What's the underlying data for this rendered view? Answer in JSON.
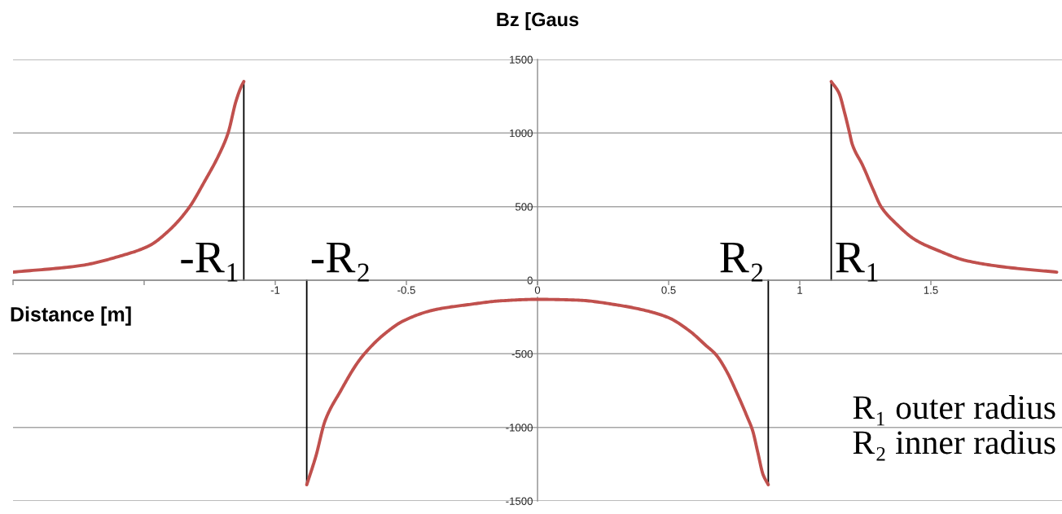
{
  "chart_data": {
    "type": "line",
    "xlabel": "Distance [m]",
    "ylabel": "Bz [Gaus",
    "xlim": [
      -2,
      2
    ],
    "ylim": [
      -1500,
      1500
    ],
    "xticks": [
      {
        "value": -2,
        "label": null
      },
      {
        "value": -1.5,
        "label": null
      },
      -1,
      -0.5,
      0,
      0.5,
      1,
      1.5
    ],
    "yticks": [
      -1500,
      -1000,
      -500,
      0,
      500,
      1000,
      1500
    ],
    "grid": "y",
    "series": [
      {
        "color": "#c0504d",
        "x": [
          -2,
          -1.74,
          -1.59,
          -1.48,
          -1.41,
          -1.33,
          -1.27,
          -1.21,
          -1.18,
          -1.15,
          -1.13,
          -1.12
        ],
        "values": [
          55,
          100,
          165,
          235,
          330,
          490,
          670,
          870,
          1000,
          1215,
          1315,
          1350
        ]
      },
      {
        "color": "#c0504d",
        "x": [
          -0.88,
          -0.845,
          -0.81,
          -0.75,
          -0.69,
          -0.66,
          -0.59,
          -0.51,
          -0.39,
          -0.26,
          -0.14,
          0,
          0.15,
          0.31,
          0.41,
          0.5,
          0.58,
          0.64,
          0.68,
          0.72,
          0.76,
          0.8,
          0.82,
          0.84,
          0.86,
          0.88
        ],
        "values": [
          -1390,
          -1195,
          -955,
          -750,
          -570,
          -500,
          -375,
          -275,
          -200,
          -165,
          -140,
          -130,
          -135,
          -170,
          -205,
          -255,
          -345,
          -440,
          -505,
          -615,
          -765,
          -930,
          -1020,
          -1170,
          -1320,
          -1390
        ]
      },
      {
        "color": "#c0504d",
        "x": [
          1.12,
          1.15,
          1.17,
          1.19,
          1.2,
          1.24,
          1.28,
          1.31,
          1.37,
          1.44,
          1.53,
          1.63,
          1.78,
          1.98
        ],
        "values": [
          1350,
          1270,
          1145,
          1000,
          925,
          780,
          615,
          500,
          380,
          275,
          200,
          135,
          90,
          55
        ]
      }
    ],
    "ref_lines": [
      {
        "axis": "x",
        "value": -1.12,
        "label": "-R₁",
        "color": "#000000"
      },
      {
        "axis": "x",
        "value": -0.88,
        "label": "-R₂",
        "color": "#000000"
      },
      {
        "axis": "x",
        "value": 0.88,
        "label": "R₂",
        "color": "#000000"
      },
      {
        "axis": "x",
        "value": 1.12,
        "label": "R₁",
        "color": "#000000"
      }
    ],
    "annotations": [
      "R₁ outer radius",
      "R₂ inner radius"
    ]
  }
}
